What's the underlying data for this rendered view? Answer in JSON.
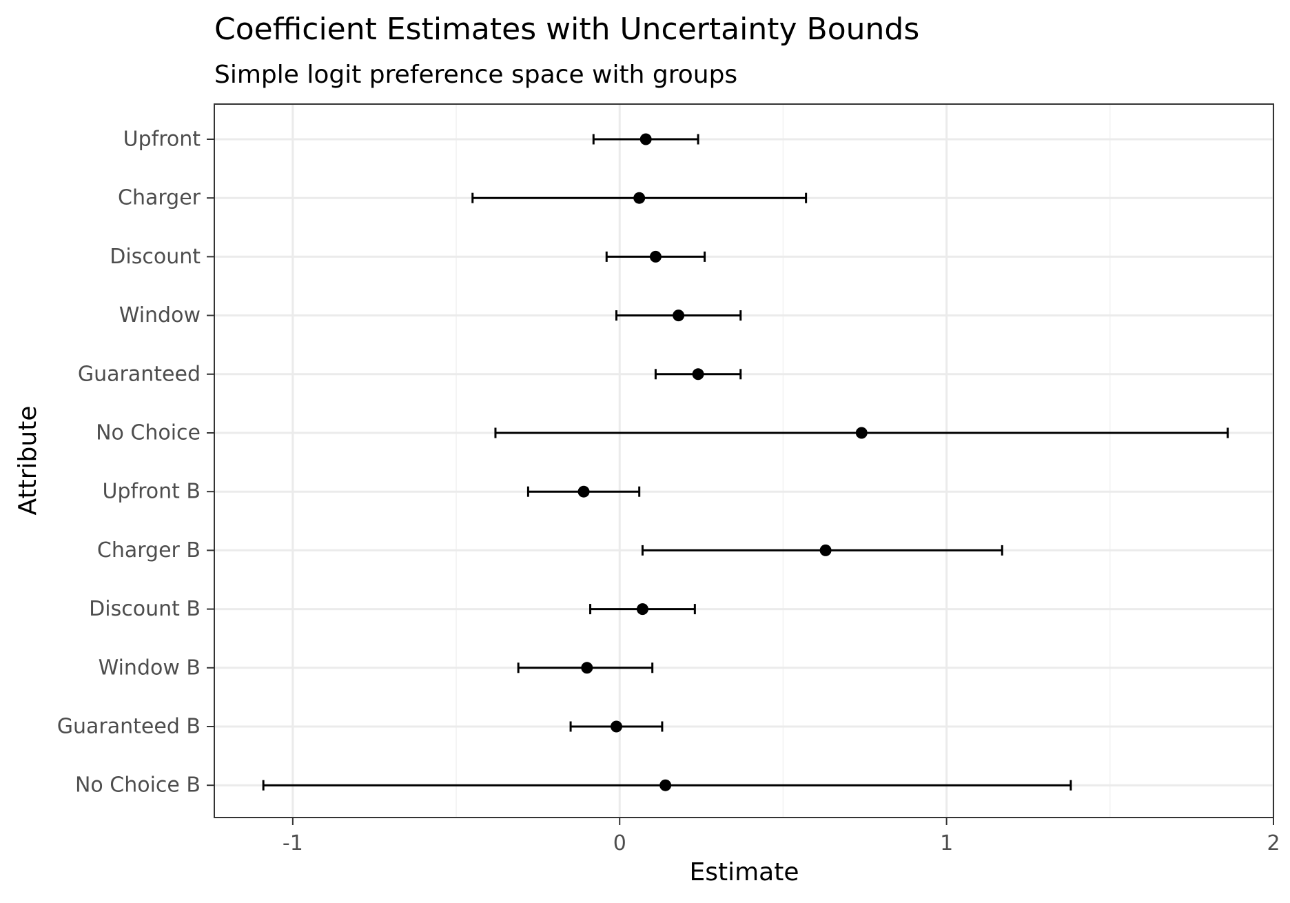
{
  "chart_data": {
    "type": "scatter",
    "title": "Coefficient Estimates with Uncertainty Bounds",
    "subtitle": "Simple logit preference space with groups",
    "xlabel": "Estimate",
    "ylabel": "Attribute",
    "xlim": [
      -1.24,
      2.0
    ],
    "xticks": [
      -1,
      0,
      1,
      2
    ],
    "xtick_labels": [
      "-1",
      "0",
      "1",
      "2"
    ],
    "grid": true,
    "legend": "none",
    "colors": {
      "point": "#000000",
      "errorbar": "#000000",
      "grid_major": "#ebebeb",
      "grid_minor": "#f2f2f2",
      "panel_border": "#333333",
      "tick_label": "#4d4d4d"
    },
    "categories": [
      "Upfront",
      "Charger",
      "Discount",
      "Window",
      "Guaranteed",
      "No Choice",
      "Upfront B",
      "Charger B",
      "Discount B",
      "Window B",
      "Guaranteed B",
      "No Choice B"
    ],
    "estimates": [
      0.08,
      0.06,
      0.11,
      0.18,
      0.24,
      0.74,
      -0.11,
      0.63,
      0.07,
      -0.1,
      -0.01,
      0.14
    ],
    "lower": [
      -0.08,
      -0.45,
      -0.04,
      -0.01,
      0.11,
      -0.38,
      -0.28,
      0.07,
      -0.09,
      -0.31,
      -0.15,
      -1.09
    ],
    "upper": [
      0.24,
      0.57,
      0.26,
      0.37,
      0.37,
      1.86,
      0.06,
      1.17,
      0.23,
      0.1,
      0.13,
      1.38
    ]
  }
}
